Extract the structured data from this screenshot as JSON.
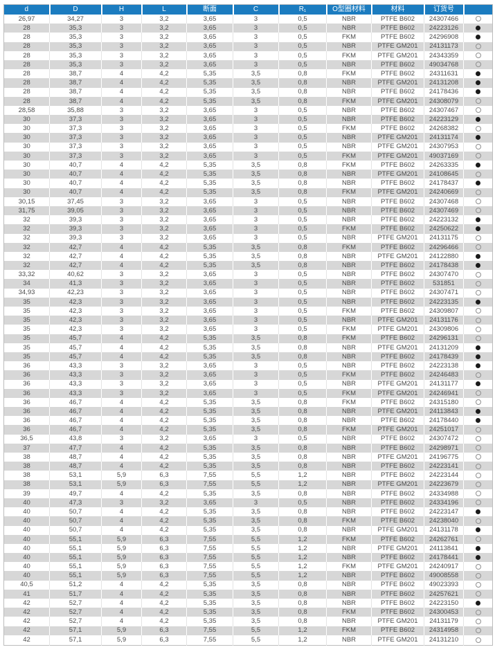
{
  "colors": {
    "header_bg": "#1b7cc0",
    "header_text": "#ffffff",
    "row_stripe": "#d7d7d7",
    "body_text": "#4a4a4a",
    "marker_filled": "#1a1a1a",
    "marker_open_border": "#8f8f8f"
  },
  "table": {
    "columns": [
      {
        "key": "d",
        "label": "d"
      },
      {
        "key": "D",
        "label": "D"
      },
      {
        "key": "H",
        "label": "H"
      },
      {
        "key": "L",
        "label": "L"
      },
      {
        "key": "cross_section",
        "label": "断面"
      },
      {
        "key": "C",
        "label": "C"
      },
      {
        "key": "R1",
        "label": "R₁"
      },
      {
        "key": "o_ring_material",
        "label": "O型圈材料"
      },
      {
        "key": "material",
        "label": "材料"
      },
      {
        "key": "order_number",
        "label": "订货号"
      },
      {
        "key": "marker",
        "label": ""
      }
    ],
    "rows": [
      [
        "26,97",
        "34,27",
        "3",
        "3,2",
        "3,65",
        "3",
        "0,5",
        "NBR",
        "PTFE B602",
        "24307466",
        "open"
      ],
      [
        "28",
        "35,3",
        "3",
        "3,2",
        "3,65",
        "3",
        "0,5",
        "NBR",
        "PTFE B602",
        "24223126",
        "filled"
      ],
      [
        "28",
        "35,3",
        "3",
        "3,2",
        "3,65",
        "3",
        "0,5",
        "FKM",
        "PTFE B602",
        "24296908",
        "filled"
      ],
      [
        "28",
        "35,3",
        "3",
        "3,2",
        "3,65",
        "3",
        "0,5",
        "NBR",
        "PTFE GM201",
        "24131173",
        "open"
      ],
      [
        "28",
        "35,3",
        "3",
        "3,2",
        "3,65",
        "3",
        "0,5",
        "FKM",
        "PTFE GM201",
        "24343359",
        "open"
      ],
      [
        "28",
        "35,3",
        "3",
        "3,2",
        "3,65",
        "3",
        "0,5",
        "NBR",
        "PTFE B602",
        "49034768",
        "open"
      ],
      [
        "28",
        "38,7",
        "4",
        "4,2",
        "5,35",
        "3,5",
        "0,8",
        "FKM",
        "PTFE B602",
        "24311631",
        "filled"
      ],
      [
        "28",
        "38,7",
        "4",
        "4,2",
        "5,35",
        "3,5",
        "0,8",
        "NBR",
        "PTFE GM201",
        "24131208",
        "filled"
      ],
      [
        "28",
        "38,7",
        "4",
        "4,2",
        "5,35",
        "3,5",
        "0,8",
        "NBR",
        "PTFE B602",
        "24178436",
        "filled"
      ],
      [
        "28",
        "38,7",
        "4",
        "4,2",
        "5,35",
        "3,5",
        "0,8",
        "FKM",
        "PTFE GM201",
        "24308079",
        "open"
      ],
      [
        "28,58",
        "35,88",
        "3",
        "3,2",
        "3,65",
        "3",
        "0,5",
        "NBR",
        "PTFE B602",
        "24307467",
        "open"
      ],
      [
        "30",
        "37,3",
        "3",
        "3,2",
        "3,65",
        "3",
        "0,5",
        "NBR",
        "PTFE B602",
        "24223129",
        "filled"
      ],
      [
        "30",
        "37,3",
        "3",
        "3,2",
        "3,65",
        "3",
        "0,5",
        "FKM",
        "PTFE B602",
        "24268382",
        "open"
      ],
      [
        "30",
        "37,3",
        "3",
        "3,2",
        "3,65",
        "3",
        "0,5",
        "NBR",
        "PTFE GM201",
        "24131174",
        "filled"
      ],
      [
        "30",
        "37,3",
        "3",
        "3,2",
        "3,65",
        "3",
        "0,5",
        "NBR",
        "PTFE GM201",
        "24307953",
        "open"
      ],
      [
        "30",
        "37,3",
        "3",
        "3,2",
        "3,65",
        "3",
        "0,5",
        "FKM",
        "PTFE GM201",
        "49037169",
        "open"
      ],
      [
        "30",
        "40,7",
        "4",
        "4,2",
        "5,35",
        "3,5",
        "0,8",
        "FKM",
        "PTFE B602",
        "24263335",
        "filled"
      ],
      [
        "30",
        "40,7",
        "4",
        "4,2",
        "5,35",
        "3,5",
        "0,8",
        "NBR",
        "PTFE GM201",
        "24108645",
        "open"
      ],
      [
        "30",
        "40,7",
        "4",
        "4,2",
        "5,35",
        "3,5",
        "0,8",
        "NBR",
        "PTFE B602",
        "24178437",
        "filled"
      ],
      [
        "30",
        "40,7",
        "4",
        "4,2",
        "5,35",
        "3,5",
        "0,8",
        "FKM",
        "PTFE GM201",
        "24240669",
        "open"
      ],
      [
        "30,15",
        "37,45",
        "3",
        "3,2",
        "3,65",
        "3",
        "0,5",
        "NBR",
        "PTFE B602",
        "24307468",
        "open"
      ],
      [
        "31,75",
        "39,05",
        "3",
        "3,2",
        "3,65",
        "3",
        "0,5",
        "NBR",
        "PTFE B602",
        "24307469",
        "open"
      ],
      [
        "32",
        "39,3",
        "3",
        "3,2",
        "3,65",
        "3",
        "0,5",
        "NBR",
        "PTFE B602",
        "24223132",
        "filled"
      ],
      [
        "32",
        "39,3",
        "3",
        "3,2",
        "3,65",
        "3",
        "0,5",
        "FKM",
        "PTFE B602",
        "24250622",
        "filled"
      ],
      [
        "32",
        "39,3",
        "3",
        "3,2",
        "3,65",
        "3",
        "0,5",
        "NBR",
        "PTFE GM201",
        "24131175",
        "open"
      ],
      [
        "32",
        "42,7",
        "4",
        "4,2",
        "5,35",
        "3,5",
        "0,8",
        "FKM",
        "PTFE B602",
        "24296466",
        "open"
      ],
      [
        "32",
        "42,7",
        "4",
        "4,2",
        "5,35",
        "3,5",
        "0,8",
        "NBR",
        "PTFE GM201",
        "24122880",
        "filled"
      ],
      [
        "32",
        "42,7",
        "4",
        "4,2",
        "5,35",
        "3,5",
        "0,8",
        "NBR",
        "PTFE B602",
        "24178438",
        "filled"
      ],
      [
        "33,32",
        "40,62",
        "3",
        "3,2",
        "3,65",
        "3",
        "0,5",
        "NBR",
        "PTFE B602",
        "24307470",
        "open"
      ],
      [
        "34",
        "41,3",
        "3",
        "3,2",
        "3,65",
        "3",
        "0,5",
        "NBR",
        "PTFE B602",
        "531851",
        "open"
      ],
      [
        "34,93",
        "42,23",
        "3",
        "3,2",
        "3,65",
        "3",
        "0,5",
        "NBR",
        "PTFE B602",
        "24307471",
        "open"
      ],
      [
        "35",
        "42,3",
        "3",
        "3,2",
        "3,65",
        "3",
        "0,5",
        "NBR",
        "PTFE B602",
        "24223135",
        "filled"
      ],
      [
        "35",
        "42,3",
        "3",
        "3,2",
        "3,65",
        "3",
        "0,5",
        "FKM",
        "PTFE B602",
        "24309807",
        "open"
      ],
      [
        "35",
        "42,3",
        "3",
        "3,2",
        "3,65",
        "3",
        "0,5",
        "NBR",
        "PTFE GM201",
        "24131176",
        "open"
      ],
      [
        "35",
        "42,3",
        "3",
        "3,2",
        "3,65",
        "3",
        "0,5",
        "FKM",
        "PTFE GM201",
        "24309806",
        "open"
      ],
      [
        "35",
        "45,7",
        "4",
        "4,2",
        "5,35",
        "3,5",
        "0,8",
        "FKM",
        "PTFE B602",
        "24296131",
        "open"
      ],
      [
        "35",
        "45,7",
        "4",
        "4,2",
        "5,35",
        "3,5",
        "0,8",
        "NBR",
        "PTFE GM201",
        "24131209",
        "filled"
      ],
      [
        "35",
        "45,7",
        "4",
        "4,2",
        "5,35",
        "3,5",
        "0,8",
        "NBR",
        "PTFE B602",
        "24178439",
        "filled"
      ],
      [
        "36",
        "43,3",
        "3",
        "3,2",
        "3,65",
        "3",
        "0,5",
        "NBR",
        "PTFE B602",
        "24223138",
        "filled"
      ],
      [
        "36",
        "43,3",
        "3",
        "3,2",
        "3,65",
        "3",
        "0,5",
        "FKM",
        "PTFE B602",
        "24246483",
        "open"
      ],
      [
        "36",
        "43,3",
        "3",
        "3,2",
        "3,65",
        "3",
        "0,5",
        "NBR",
        "PTFE GM201",
        "24131177",
        "filled"
      ],
      [
        "36",
        "43,3",
        "3",
        "3,2",
        "3,65",
        "3",
        "0,5",
        "FKM",
        "PTFE GM201",
        "24246941",
        "open"
      ],
      [
        "36",
        "46,7",
        "4",
        "4,2",
        "5,35",
        "3,5",
        "0,8",
        "FKM",
        "PTFE B602",
        "24315180",
        "open"
      ],
      [
        "36",
        "46,7",
        "4",
        "4,2",
        "5,35",
        "3,5",
        "0,8",
        "NBR",
        "PTFE GM201",
        "24113843",
        "filled"
      ],
      [
        "36",
        "46,7",
        "4",
        "4,2",
        "5,35",
        "3,5",
        "0,8",
        "NBR",
        "PTFE B602",
        "24178440",
        "filled"
      ],
      [
        "36",
        "46,7",
        "4",
        "4,2",
        "5,35",
        "3,5",
        "0,8",
        "FKM",
        "PTFE GM201",
        "24251017",
        "open"
      ],
      [
        "36,5",
        "43,8",
        "3",
        "3,2",
        "3,65",
        "3",
        "0,5",
        "NBR",
        "PTFE B602",
        "24307472",
        "open"
      ],
      [
        "37",
        "47,7",
        "4",
        "4,2",
        "5,35",
        "3,5",
        "0,8",
        "NBR",
        "PTFE B602",
        "24298971",
        "open"
      ],
      [
        "38",
        "48,7",
        "4",
        "4,2",
        "5,35",
        "3,5",
        "0,8",
        "NBR",
        "PTFE GM201",
        "24196775",
        "open"
      ],
      [
        "38",
        "48,7",
        "4",
        "4,2",
        "5,35",
        "3,5",
        "0,8",
        "NBR",
        "PTFE B602",
        "24223141",
        "open"
      ],
      [
        "38",
        "53,1",
        "5,9",
        "6,3",
        "7,55",
        "5,5",
        "1,2",
        "NBR",
        "PTFE B602",
        "24223144",
        "open"
      ],
      [
        "38",
        "53,1",
        "5,9",
        "6,3",
        "7,55",
        "5,5",
        "1,2",
        "NBR",
        "PTFE GM201",
        "24223679",
        "open"
      ],
      [
        "39",
        "49,7",
        "4",
        "4,2",
        "5,35",
        "3,5",
        "0,8",
        "NBR",
        "PTFE B602",
        "24334988",
        "open"
      ],
      [
        "40",
        "47,3",
        "3",
        "3,2",
        "3,65",
        "3",
        "0,5",
        "NBR",
        "PTFE B602",
        "24334196",
        "open"
      ],
      [
        "40",
        "50,7",
        "4",
        "4,2",
        "5,35",
        "3,5",
        "0,8",
        "NBR",
        "PTFE B602",
        "24223147",
        "filled"
      ],
      [
        "40",
        "50,7",
        "4",
        "4,2",
        "5,35",
        "3,5",
        "0,8",
        "FKM",
        "PTFE B602",
        "24238040",
        "open"
      ],
      [
        "40",
        "50,7",
        "4",
        "4,2",
        "5,35",
        "3,5",
        "0,8",
        "NBR",
        "PTFE GM201",
        "24131178",
        "filled"
      ],
      [
        "40",
        "55,1",
        "5,9",
        "6,3",
        "7,55",
        "5,5",
        "1,2",
        "FKM",
        "PTFE B602",
        "24262761",
        "open"
      ],
      [
        "40",
        "55,1",
        "5,9",
        "6,3",
        "7,55",
        "5,5",
        "1,2",
        "NBR",
        "PTFE GM201",
        "24113841",
        "filled"
      ],
      [
        "40",
        "55,1",
        "5,9",
        "6,3",
        "7,55",
        "5,5",
        "1,2",
        "NBR",
        "PTFE B602",
        "24178441",
        "filled"
      ],
      [
        "40",
        "55,1",
        "5,9",
        "6,3",
        "7,55",
        "5,5",
        "1,2",
        "FKM",
        "PTFE GM201",
        "24240917",
        "open"
      ],
      [
        "40",
        "55,1",
        "5,9",
        "6,3",
        "7,55",
        "5,5",
        "1,2",
        "NBR",
        "PTFE B602",
        "49008558",
        "open"
      ],
      [
        "40,5",
        "51,2",
        "4",
        "4,2",
        "5,35",
        "3,5",
        "0,8",
        "NBR",
        "PTFE B602",
        "49023393",
        "open"
      ],
      [
        "41",
        "51,7",
        "4",
        "4,2",
        "5,35",
        "3,5",
        "0,8",
        "NBR",
        "PTFE B602",
        "24257621",
        "open"
      ],
      [
        "42",
        "52,7",
        "4",
        "4,2",
        "5,35",
        "3,5",
        "0,8",
        "NBR",
        "PTFE B602",
        "24223150",
        "filled"
      ],
      [
        "42",
        "52,7",
        "4",
        "4,2",
        "5,35",
        "3,5",
        "0,8",
        "FKM",
        "PTFE B602",
        "24300453",
        "open"
      ],
      [
        "42",
        "52,7",
        "4",
        "4,2",
        "5,35",
        "3,5",
        "0,8",
        "NBR",
        "PTFE GM201",
        "24131179",
        "open"
      ],
      [
        "42",
        "57,1",
        "5,9",
        "6,3",
        "7,55",
        "5,5",
        "1,2",
        "FKM",
        "PTFE B602",
        "24314958",
        "open"
      ],
      [
        "42",
        "57,1",
        "5,9",
        "6,3",
        "7,55",
        "5,5",
        "1,2",
        "NBR",
        "PTFE GM201",
        "24131210",
        "open"
      ]
    ]
  }
}
